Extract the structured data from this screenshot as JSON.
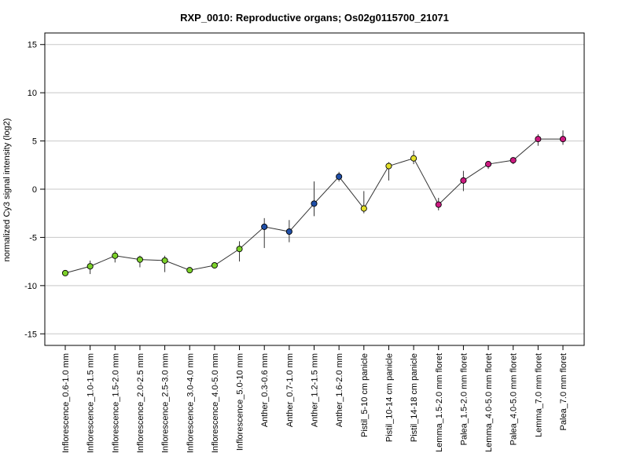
{
  "chart_data": {
    "type": "scatter",
    "title": "RXP_0010: Reproductive organs; Os02g0115700_21071",
    "xlabel": "",
    "ylabel": "normalized Cy3 signal intensity (log2)",
    "ylim": [
      -16.2,
      16.2
    ],
    "yticks": [
      -15,
      -10,
      -5,
      0,
      5,
      10,
      15
    ],
    "grid": "horizontal",
    "connected": true,
    "line_color": "#333333",
    "categories": [
      "Inflorescence_0.6-1.0 mm",
      "Inflorescence_1.0-1.5 mm",
      "Inflorescence_1.5-2.0 mm",
      "Inflorescence_2.0-2.5 mm",
      "Inflorescence_2.5-3.0 mm",
      "Inflorescence_3.0-4.0 mm",
      "Inflorescence_4.0-5.0 mm",
      "Inflorescence_5.0-10 mm",
      "Anther_0.3-0.6 mm",
      "Anther_0.7-1.0 mm",
      "Anther_1.2-1.5 mm",
      "Anther_1.6-2.0 mm",
      "Pistil_5-10 cm panicle",
      "Pistil_10-14 cm panicle",
      "Pistil_14-18 cm panicle",
      "Lemma_1.5-2.0 mm floret",
      "Palea_1.5-2.0 mm floret",
      "Lemma_4.0-5.0 mm floret",
      "Palea_4.0-5.0 mm floret",
      "Lemma_7.0 mm floret",
      "Palea_7.0 mm floret"
    ],
    "values": [
      -8.7,
      -8.0,
      -6.9,
      -7.3,
      -7.4,
      -8.4,
      -7.9,
      -6.2,
      -3.9,
      -4.4,
      -1.5,
      1.3,
      -2.0,
      2.4,
      3.2,
      -1.6,
      0.9,
      2.6,
      3.0,
      5.2,
      5.2
    ],
    "err_low": [
      -9.0,
      -8.8,
      -7.6,
      -8.1,
      -8.6,
      -8.6,
      -8.2,
      -7.5,
      -6.1,
      -5.5,
      -2.8,
      0.8,
      -2.5,
      0.9,
      2.6,
      -2.2,
      -0.2,
      2.1,
      2.6,
      4.5,
      4.6
    ],
    "err_high": [
      -8.4,
      -7.4,
      -6.4,
      -6.9,
      -6.9,
      -8.2,
      -7.6,
      -5.4,
      -3.0,
      -3.2,
      0.8,
      1.8,
      -0.2,
      2.8,
      4.0,
      -0.9,
      1.9,
      2.9,
      3.3,
      5.7,
      6.1
    ],
    "colors": [
      "#7cd12a",
      "#7cd12a",
      "#7cd12a",
      "#7cd12a",
      "#7cd12a",
      "#7cd12a",
      "#7cd12a",
      "#7cd12a",
      "#1f4fa8",
      "#1f4fa8",
      "#1f4fa8",
      "#1f4fa8",
      "#e3e02a",
      "#e3e02a",
      "#e3e02a",
      "#cc1a80",
      "#cc1a80",
      "#cc1a80",
      "#cc1a80",
      "#cc1a80",
      "#cc1a80"
    ]
  }
}
